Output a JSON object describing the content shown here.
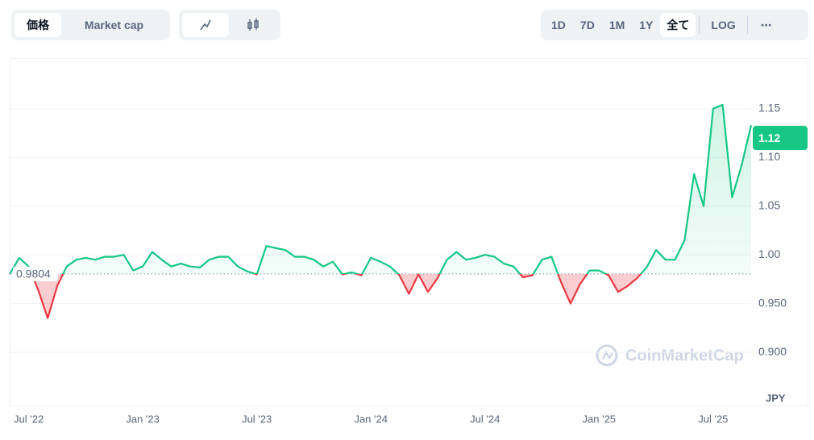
{
  "controls": {
    "tabs": [
      "価格",
      "Market cap"
    ],
    "ranges": [
      "1D",
      "7D",
      "1M",
      "1Y",
      "全て"
    ],
    "log": "LOG",
    "more": "⋯"
  },
  "chart_data": {
    "type": "line",
    "categories": [
      null,
      null,
      "Jul '22",
      null,
      null,
      null,
      null,
      null,
      null,
      null,
      null,
      null,
      null,
      null,
      "Jan '23",
      null,
      null,
      null,
      null,
      null,
      null,
      null,
      null,
      null,
      null,
      null,
      "Jul '23",
      null,
      null,
      null,
      null,
      null,
      null,
      null,
      null,
      null,
      null,
      null,
      "Jan '24",
      null,
      null,
      null,
      null,
      null,
      null,
      null,
      null,
      null,
      null,
      null,
      "Jul '24",
      null,
      null,
      null,
      null,
      null,
      null,
      null,
      null,
      null,
      null,
      null,
      "Jan '25",
      null,
      null,
      null,
      null,
      null,
      null,
      null,
      null,
      null,
      null,
      null,
      "Jul '25",
      null,
      null,
      null,
      null
    ],
    "series": [
      {
        "name": "JPY",
        "color": "#16c784",
        "negative_color": "#ea3943",
        "values": [
          0.98,
          0.997,
          0.988,
          0.964,
          0.935,
          0.968,
          0.988,
          0.995,
          0.997,
          0.995,
          0.998,
          0.998,
          1.0,
          0.984,
          0.988,
          1.003,
          0.995,
          0.988,
          0.991,
          0.988,
          0.987,
          0.995,
          0.998,
          0.998,
          0.988,
          0.983,
          0.98,
          1.009,
          1.007,
          1.005,
          0.998,
          0.998,
          0.995,
          0.988,
          0.993,
          0.98,
          0.982,
          0.979,
          0.997,
          0.993,
          0.988,
          0.979,
          0.96,
          0.98,
          0.962,
          0.976,
          0.995,
          1.003,
          0.995,
          0.997,
          1.0,
          0.998,
          0.991,
          0.988,
          0.977,
          0.979,
          0.995,
          0.998,
          0.972,
          0.95,
          0.97,
          0.984,
          0.984,
          0.979,
          0.962,
          0.968,
          0.976,
          0.987,
          1.005,
          0.995,
          0.995,
          1.015,
          1.083,
          1.05,
          1.15,
          1.154,
          1.059,
          1.092,
          1.133
        ]
      }
    ],
    "baseline": 0.9804,
    "current_price": 1.12,
    "ylim": [
      0.848,
      1.202
    ],
    "yticks": [
      {
        "value": 0.9,
        "label": "0.900"
      },
      {
        "value": 0.95,
        "label": "0.950"
      },
      {
        "value": 1,
        "label": "1.00"
      },
      1.05,
      {
        "value": 1.1,
        "label": "1.10"
      },
      1.15
    ],
    "grid": true,
    "unit": "JPY",
    "watermark": "CoinMarketCap"
  }
}
